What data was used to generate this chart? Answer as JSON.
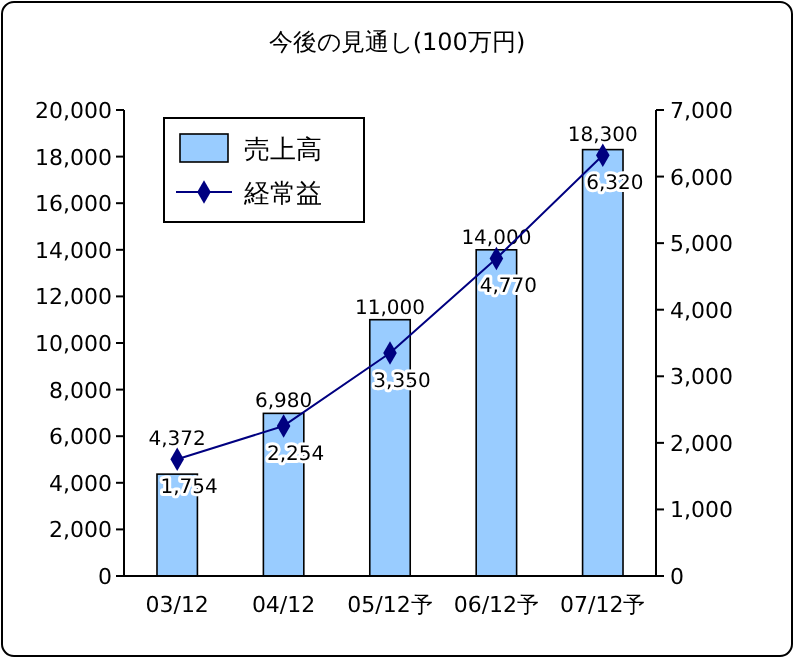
{
  "chart_data": {
    "type": "bar",
    "title": "今後の見通し(100万円)",
    "categories": [
      "03/12",
      "04/12",
      "05/12予",
      "06/12予",
      "07/12予"
    ],
    "series": [
      {
        "name": "売上高",
        "type": "bar",
        "color": "#99ccff",
        "values": [
          4372,
          6980,
          11000,
          14000,
          18300
        ],
        "value_labels": [
          "4,372",
          "6,980",
          "11,000",
          "14,000",
          "18,300"
        ]
      },
      {
        "name": "経常益",
        "type": "line",
        "axis": "y2",
        "color": "#000080",
        "marker": "diamond",
        "values": [
          1754,
          2254,
          3350,
          4770,
          6320
        ],
        "value_labels": [
          "1,754",
          "2,254",
          "3,350",
          "4,770",
          "6,320"
        ]
      }
    ],
    "ylim": [
      0,
      20000
    ],
    "yticks": [
      {
        "value": 0,
        "label": "0"
      },
      {
        "value": 2000,
        "label": "2,000"
      },
      {
        "value": 4000,
        "label": "4,000"
      },
      {
        "value": 6000,
        "label": "6,000"
      },
      {
        "value": 8000,
        "label": "8,000"
      },
      {
        "value": 10000,
        "label": "10,000"
      },
      {
        "value": 12000,
        "label": "12,000"
      },
      {
        "value": 14000,
        "label": "14,000"
      },
      {
        "value": 16000,
        "label": "16,000"
      },
      {
        "value": 18000,
        "label": "18,000"
      },
      {
        "value": 20000,
        "label": "20,000"
      }
    ],
    "y2lim": [
      0,
      7000
    ],
    "y2ticks": [
      {
        "value": 0,
        "label": "0"
      },
      {
        "value": 1000,
        "label": "1,000"
      },
      {
        "value": 2000,
        "label": "2,000"
      },
      {
        "value": 3000,
        "label": "3,000"
      },
      {
        "value": 4000,
        "label": "4,000"
      },
      {
        "value": 5000,
        "label": "5,000"
      },
      {
        "value": 6000,
        "label": "6,000"
      },
      {
        "value": 7000,
        "label": "7,000"
      }
    ],
    "data_labels": true,
    "legend": "top left",
    "grid": false
  }
}
